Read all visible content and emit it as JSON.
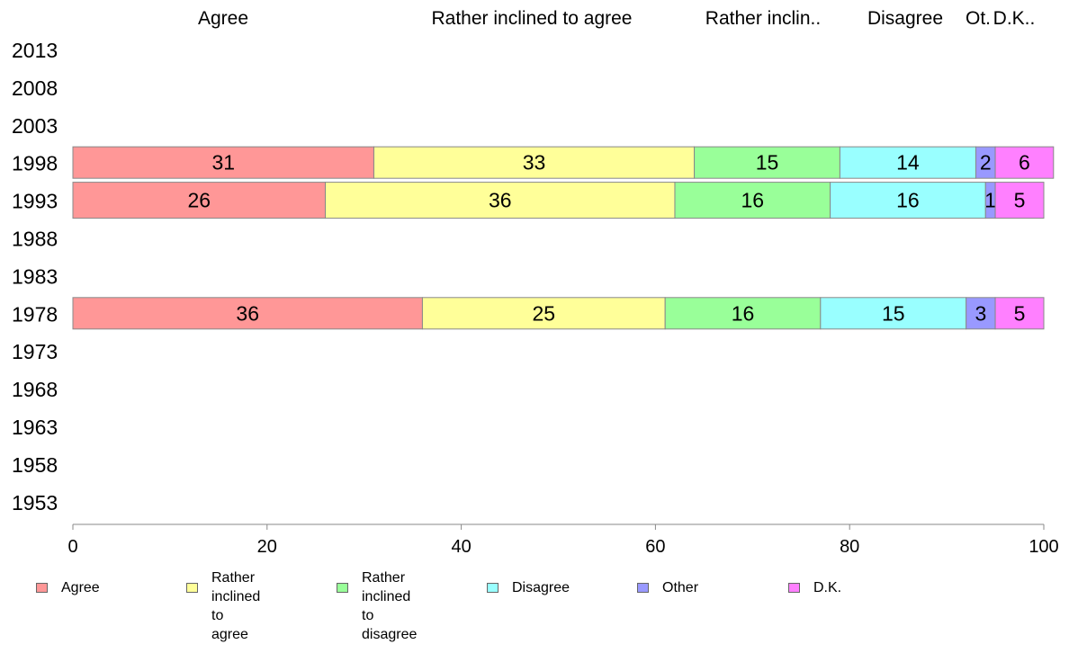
{
  "chart_data": {
    "type": "bar",
    "orientation": "horizontal",
    "stacked": true,
    "top_labels": [
      "Agree",
      "Rather inclined to agree",
      "Rather inclin..",
      "Disagree",
      "Ot.",
      "D.K.."
    ],
    "categories": [
      "2013",
      "2008",
      "2003",
      "1998",
      "1993",
      "1988",
      "1983",
      "1978",
      "1973",
      "1968",
      "1963",
      "1958",
      "1953"
    ],
    "xlim": [
      0,
      100
    ],
    "xticks": [
      "0",
      "20",
      "40",
      "60",
      "80",
      "100"
    ],
    "grid": false,
    "legend_position": "bottom",
    "series": [
      {
        "name": "Agree",
        "legend_label": "Agree",
        "color": "#ff9797",
        "values": [
          null,
          null,
          null,
          31,
          26,
          null,
          null,
          36,
          null,
          null,
          null,
          null,
          null
        ]
      },
      {
        "name": "Rather inclined to agree",
        "legend_label": "Rather inclined\nto agree",
        "color": "#ffff99",
        "values": [
          null,
          null,
          null,
          33,
          36,
          null,
          null,
          25,
          null,
          null,
          null,
          null,
          null
        ]
      },
      {
        "name": "Rather inclined to disagree",
        "legend_label": "Rather inclined\nto disagree",
        "color": "#99ff99",
        "values": [
          null,
          null,
          null,
          15,
          16,
          null,
          null,
          16,
          null,
          null,
          null,
          null,
          null
        ]
      },
      {
        "name": "Disagree",
        "legend_label": "Disagree",
        "color": "#99ffff",
        "values": [
          null,
          null,
          null,
          14,
          16,
          null,
          null,
          15,
          null,
          null,
          null,
          null,
          null
        ]
      },
      {
        "name": "Other",
        "legend_label": "Other",
        "color": "#9999ff",
        "values": [
          null,
          null,
          null,
          2,
          1,
          null,
          null,
          3,
          null,
          null,
          null,
          null,
          null
        ]
      },
      {
        "name": "D.K.",
        "legend_label": "D.K.",
        "color": "#ff80ff",
        "values": [
          null,
          null,
          null,
          6,
          5,
          null,
          null,
          5,
          null,
          null,
          null,
          null,
          null
        ]
      }
    ]
  }
}
